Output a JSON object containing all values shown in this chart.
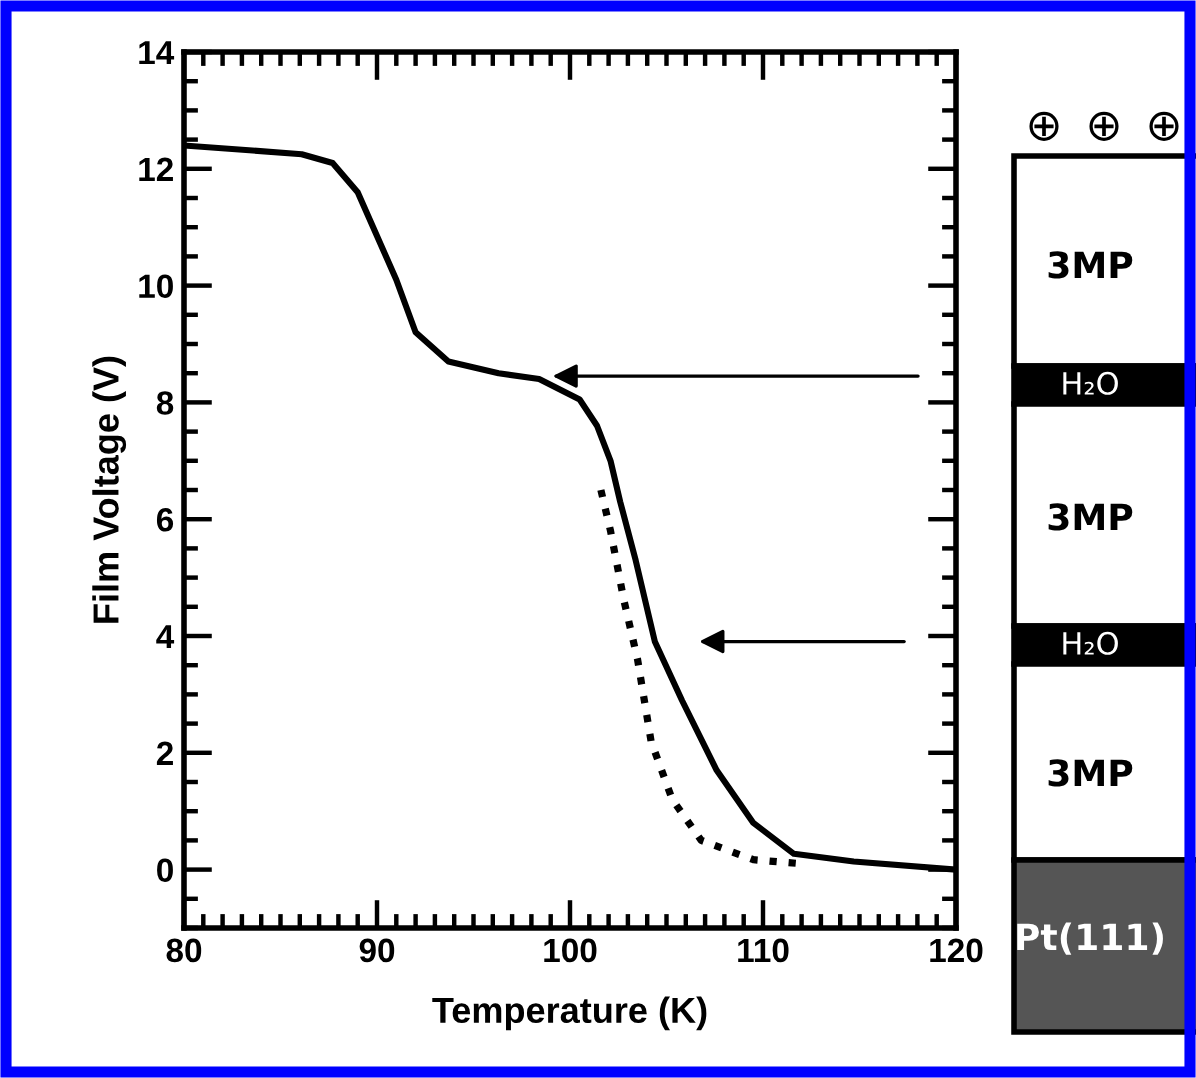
{
  "chart_data": {
    "type": "line",
    "xlabel": "Temperature (K)",
    "ylabel": "Film Voltage (V)",
    "xlim": [
      80,
      120
    ],
    "xticks": [
      80,
      90,
      100,
      110,
      120
    ],
    "ylim": [
      -1,
      14
    ],
    "yticks": [
      0,
      2,
      4,
      6,
      8,
      10,
      12,
      14
    ],
    "grid": false,
    "marker": "none",
    "series": [
      {
        "color": "#000000",
        "line_style": "solid",
        "x": [
          80,
          86.1,
          87.7,
          89,
          91,
          92,
          93.7,
          96.3,
          98.4,
          100.5,
          101.4,
          102.1,
          102.6,
          103.4,
          104.4,
          105.8,
          107.6,
          109.5,
          111.6,
          114.7,
          120
        ],
        "values": [
          12.4,
          12.25,
          12.1,
          11.6,
          10.1,
          9.2,
          8.7,
          8.5,
          8.4,
          8.05,
          7.6,
          7.0,
          6.3,
          5.3,
          3.9,
          2.9,
          1.7,
          0.8,
          0.27,
          0.14,
          0.0
        ]
      },
      {
        "color": "#000000",
        "line_style": "dotted",
        "x": [
          101.6,
          102.1,
          102.8,
          103.5,
          104.2,
          105.3,
          106.8,
          109.5,
          112
        ],
        "values": [
          6.5,
          5.8,
          4.6,
          3.6,
          2.2,
          1.2,
          0.5,
          0.17,
          0.1
        ]
      }
    ],
    "annotations": [
      "⊕",
      "⊕",
      "⊕",
      "3MP",
      "H₂O",
      "3MP",
      "H₂O",
      "3MP",
      "Pt(111)"
    ]
  }
}
